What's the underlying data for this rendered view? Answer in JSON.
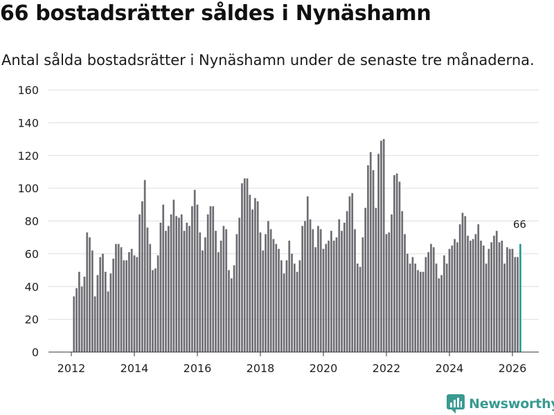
{
  "title": "66 bostadsrätter såldes i Nynäshamn",
  "subtitle": "Antal sålda bostadsrätter i Nynäshamn under de senaste tre månaderna.",
  "brand": {
    "name": "Newsworthy"
  },
  "colors": {
    "bar": "#6f6e74",
    "highlight": "#2f9b93",
    "grid": "#dddddd",
    "text": "#222222"
  },
  "chart_data": {
    "type": "bar",
    "title": "66 bostadsrätter såldes i Nynäshamn",
    "xlabel": "",
    "ylabel": "",
    "ylim": [
      0,
      160
    ],
    "yticks": [
      0,
      20,
      40,
      60,
      80,
      100,
      120,
      140,
      160
    ],
    "xticks": [
      "2012",
      "2014",
      "2016",
      "2018",
      "2020",
      "2022",
      "2024",
      "2026"
    ],
    "start": "2012-02",
    "highlight_label": "66",
    "values": [
      34,
      39,
      49,
      40,
      46,
      73,
      70,
      62,
      34,
      47,
      58,
      60,
      49,
      37,
      48,
      57,
      66,
      66,
      64,
      56,
      56,
      61,
      63,
      59,
      58,
      84,
      92,
      105,
      76,
      66,
      50,
      51,
      59,
      79,
      90,
      74,
      77,
      84,
      93,
      83,
      82,
      84,
      74,
      79,
      77,
      89,
      99,
      90,
      73,
      62,
      70,
      84,
      89,
      89,
      74,
      61,
      68,
      77,
      75,
      50,
      45,
      53,
      72,
      82,
      103,
      106,
      106,
      96,
      87,
      94,
      92,
      73,
      62,
      72,
      80,
      75,
      69,
      66,
      63,
      56,
      48,
      56,
      68,
      60,
      54,
      49,
      56,
      77,
      80,
      95,
      81,
      75,
      64,
      77,
      75,
      63,
      66,
      68,
      74,
      68,
      70,
      81,
      74,
      79,
      86,
      95,
      97,
      75,
      54,
      52,
      70,
      88,
      114,
      122,
      111,
      88,
      121,
      129,
      130,
      72,
      73,
      84,
      108,
      109,
      104,
      86,
      72,
      60,
      54,
      58,
      54,
      50,
      49,
      49,
      58,
      61,
      66,
      64,
      54,
      45,
      47,
      59,
      54,
      63,
      65,
      69,
      67,
      78,
      85,
      83,
      71,
      68,
      69,
      72,
      78,
      68,
      65,
      54,
      63,
      67,
      71,
      74,
      67,
      68,
      54,
      64,
      63,
      63,
      58,
      58,
      66
    ]
  }
}
